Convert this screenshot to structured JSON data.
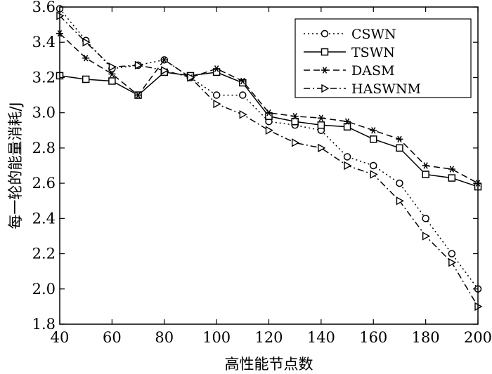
{
  "chart_data": {
    "type": "line",
    "xlabel": "高性能节点数",
    "ylabel": "每一轮的能量消耗/J",
    "xlim": [
      40,
      200
    ],
    "ylim": [
      1.8,
      3.6
    ],
    "xticks": [
      40,
      60,
      80,
      100,
      120,
      140,
      160,
      180,
      200
    ],
    "xtick_labels": [
      "40",
      "60",
      "80",
      "100",
      "120",
      "140",
      "160",
      "180",
      "200"
    ],
    "yticks": [
      1.8,
      2.0,
      2.2,
      2.4,
      2.6,
      2.8,
      3.0,
      3.2,
      3.4,
      3.6
    ],
    "ytick_labels": [
      "1.8",
      "2.0",
      "2.2",
      "2.4",
      "2.6",
      "2.8",
      "3.0",
      "3.2",
      "3.4",
      "3.6"
    ],
    "grid": false,
    "legend_position": "top-right",
    "x": [
      40,
      50,
      60,
      70,
      80,
      90,
      100,
      110,
      120,
      130,
      140,
      150,
      160,
      170,
      180,
      190,
      200
    ],
    "series": [
      {
        "name": "CSWN",
        "marker": "circle",
        "dash": "dotted",
        "values": [
          3.59,
          3.41,
          3.25,
          3.27,
          3.3,
          3.2,
          3.1,
          3.1,
          2.95,
          2.93,
          2.9,
          2.75,
          2.7,
          2.6,
          2.4,
          2.2,
          2.0
        ]
      },
      {
        "name": "TSWN",
        "marker": "square",
        "dash": "solid",
        "values": [
          3.21,
          3.19,
          3.18,
          3.1,
          3.23,
          3.21,
          3.23,
          3.17,
          2.98,
          2.95,
          2.93,
          2.92,
          2.85,
          2.8,
          2.65,
          2.63,
          2.58
        ]
      },
      {
        "name": "DASM",
        "marker": "asterisk",
        "dash": "dashed",
        "values": [
          3.45,
          3.31,
          3.22,
          3.1,
          3.3,
          3.2,
          3.25,
          3.18,
          3.0,
          2.98,
          2.97,
          2.95,
          2.9,
          2.85,
          2.7,
          2.68,
          2.6
        ]
      },
      {
        "name": "HASWNM",
        "marker": "triangle-right",
        "dash": "dash-dot",
        "values": [
          3.55,
          3.4,
          3.26,
          3.27,
          3.24,
          3.2,
          3.05,
          2.99,
          2.9,
          2.83,
          2.8,
          2.7,
          2.65,
          2.5,
          2.3,
          2.15,
          1.9
        ]
      }
    ]
  }
}
